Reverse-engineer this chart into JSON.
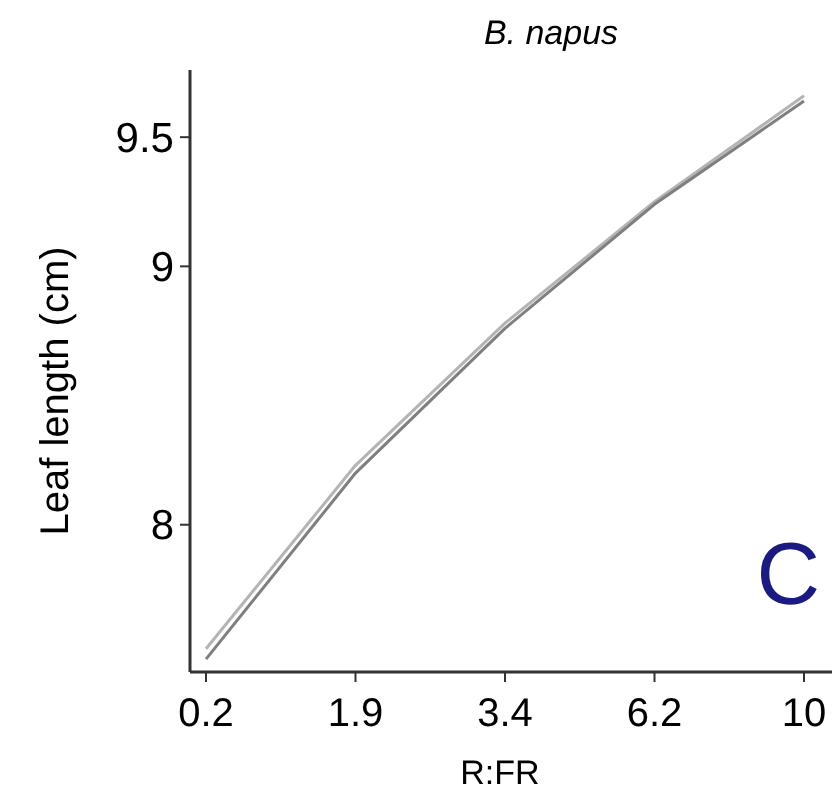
{
  "chart_data": {
    "type": "line",
    "title": "B. napus",
    "xlabel": "R:FR",
    "ylabel": "Leaf length (cm)",
    "categories": [
      "0.2",
      "1.9",
      "3.4",
      "6.2",
      "10"
    ],
    "series": [
      {
        "color": "#b4b4b4",
        "values": [
          7.52,
          8.23,
          8.78,
          9.25,
          9.66
        ]
      },
      {
        "color": "#7f7f7f",
        "values": [
          7.48,
          8.2,
          8.76,
          9.24,
          9.64
        ]
      }
    ],
    "ylim": [
      7.43,
      9.76
    ],
    "yticks": [
      8,
      9,
      9.5
    ],
    "grid": false,
    "marker": "none",
    "line_style": "solid",
    "annotations": [
      "C"
    ]
  }
}
